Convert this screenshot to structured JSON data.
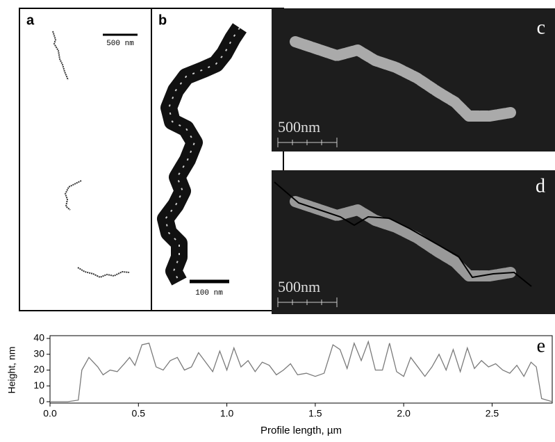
{
  "panels": [
    {
      "label": "a",
      "scale_bar": "500 nm"
    },
    {
      "label": "b",
      "scale_bar": "100 nm"
    },
    {
      "label": "c",
      "scale_bar": "500nm"
    },
    {
      "label": "d",
      "scale_bar": "500nm"
    }
  ],
  "chart_data": {
    "type": "line",
    "panel_label": "e",
    "x_label": "Profile length, µm",
    "y_label": "Height, nm",
    "x": [
      0,
      0.1,
      0.16,
      0.18,
      0.22,
      0.27,
      0.3,
      0.34,
      0.38,
      0.42,
      0.45,
      0.48,
      0.52,
      0.56,
      0.6,
      0.64,
      0.68,
      0.72,
      0.76,
      0.8,
      0.84,
      0.88,
      0.92,
      0.96,
      1.0,
      1.04,
      1.08,
      1.12,
      1.16,
      1.2,
      1.24,
      1.28,
      1.32,
      1.36,
      1.4,
      1.45,
      1.5,
      1.55,
      1.6,
      1.64,
      1.68,
      1.72,
      1.76,
      1.8,
      1.84,
      1.88,
      1.92,
      1.96,
      2.0,
      2.04,
      2.08,
      2.12,
      2.16,
      2.2,
      2.24,
      2.28,
      2.32,
      2.36,
      2.4,
      2.44,
      2.48,
      2.52,
      2.56,
      2.6,
      2.64,
      2.68,
      2.72,
      2.75,
      2.78,
      2.84
    ],
    "series": [
      {
        "color": "#7a7a7a",
        "values": [
          0,
          0,
          1,
          20,
          28,
          22,
          17,
          20,
          19,
          24,
          28,
          23,
          36,
          37,
          22,
          20,
          26,
          28,
          20,
          22,
          31,
          25,
          19,
          32,
          20,
          34,
          22,
          26,
          19,
          25,
          23,
          17,
          20,
          24,
          17,
          18,
          16,
          18,
          36,
          33,
          21,
          37,
          26,
          38,
          20,
          20,
          37,
          19,
          16,
          28,
          22,
          16,
          22,
          30,
          20,
          33,
          19,
          34,
          21,
          26,
          22,
          24,
          20,
          18,
          23,
          16,
          25,
          22,
          2,
          0
        ]
      }
    ],
    "xlim": [
      0,
      2.84
    ],
    "ylim": [
      0,
      40
    ],
    "xticks": [
      {
        "value": 0,
        "label": "0.0"
      },
      {
        "value": 0.5,
        "label": "0.5"
      },
      {
        "value": 1,
        "label": "1.0"
      },
      {
        "value": 1.5,
        "label": "1.5"
      },
      {
        "value": 2,
        "label": "2.0"
      },
      {
        "value": 2.5,
        "label": "2.5"
      }
    ],
    "yticks": [
      0,
      10,
      20,
      30,
      40
    ]
  }
}
